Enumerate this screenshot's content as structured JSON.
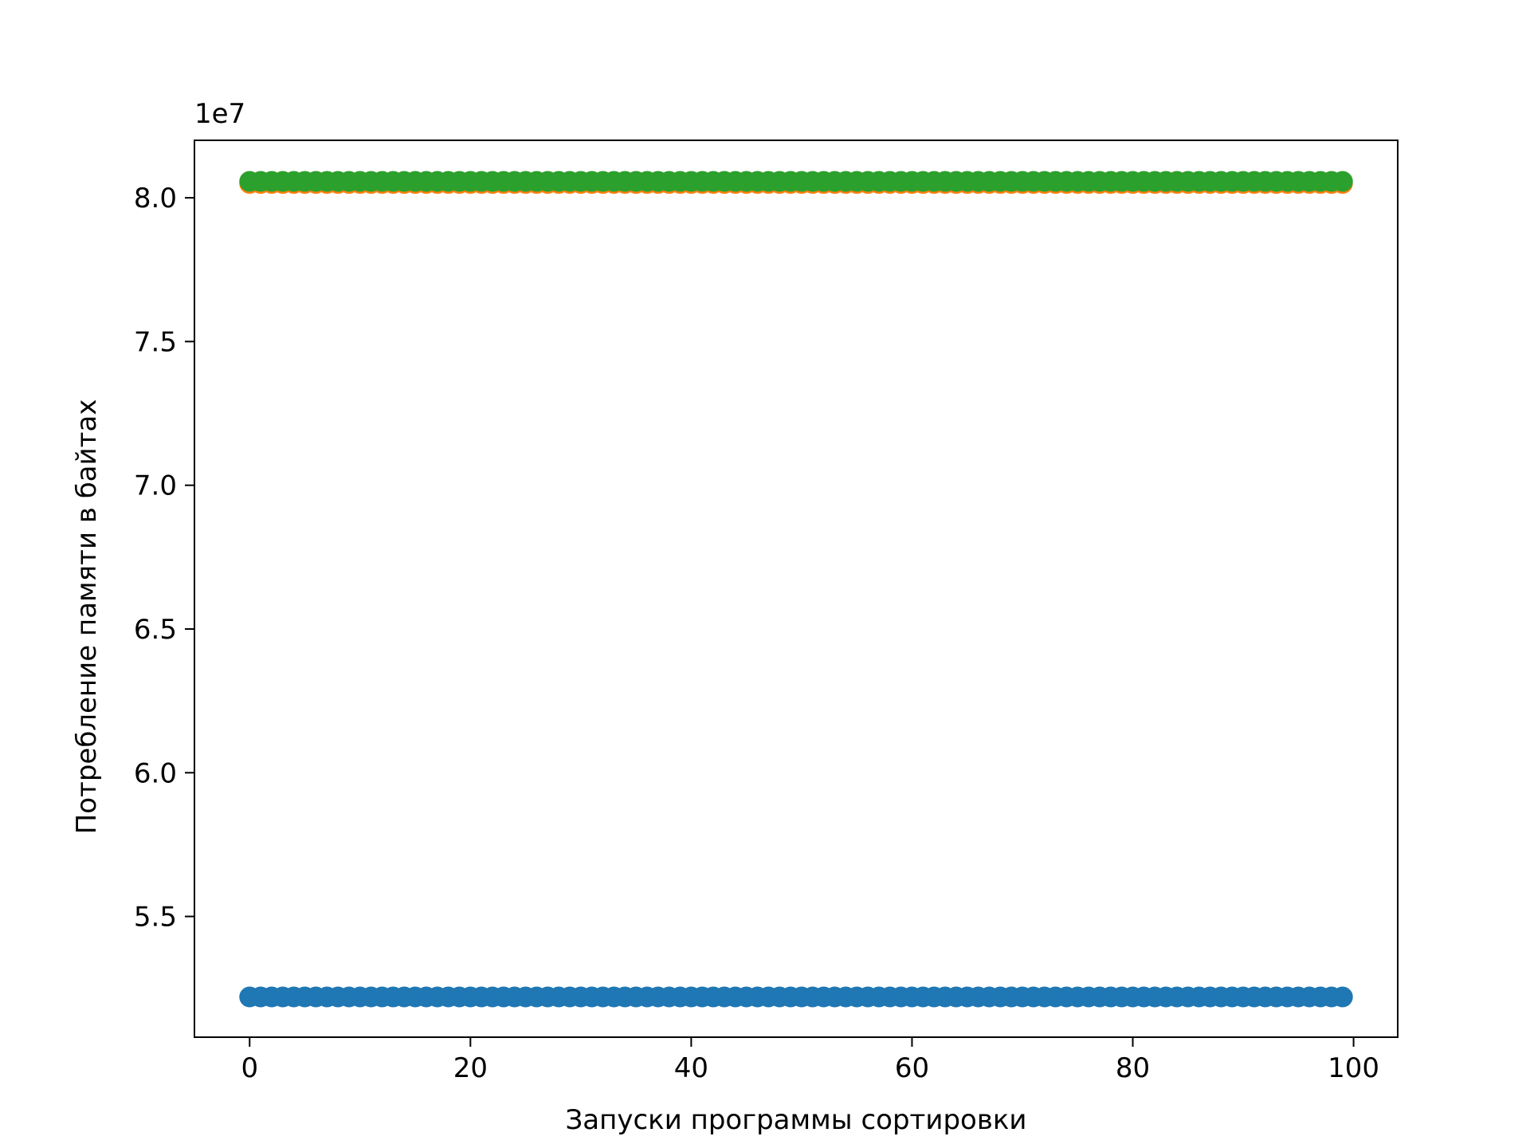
{
  "chart_data": {
    "type": "scatter",
    "title": "",
    "xlabel": "Запуски программы сортировки",
    "ylabel": "Потребление памяти в байтах",
    "y_offset_label": "1e7",
    "xlim": [
      -5,
      104
    ],
    "ylim": [
      5.08,
      8.2
    ],
    "y_unit_scale": 10000000,
    "x_ticks": [
      0,
      20,
      40,
      60,
      80,
      100
    ],
    "x_tick_labels": [
      "0",
      "20",
      "40",
      "60",
      "80",
      "100"
    ],
    "y_ticks": [
      5.5,
      6.0,
      6.5,
      7.0,
      7.5,
      8.0
    ],
    "y_tick_labels": [
      "5.5",
      "6.0",
      "6.5",
      "7.0",
      "7.5",
      "8.0"
    ],
    "grid": false,
    "legend": "none",
    "x_start": 0,
    "x_end": 99,
    "series": [
      {
        "color": "#1f77b4",
        "y": 5.22
      },
      {
        "color": "#ff7f0e",
        "y": 8.05
      },
      {
        "color": "#2ca02c",
        "y": 8.057
      }
    ]
  }
}
